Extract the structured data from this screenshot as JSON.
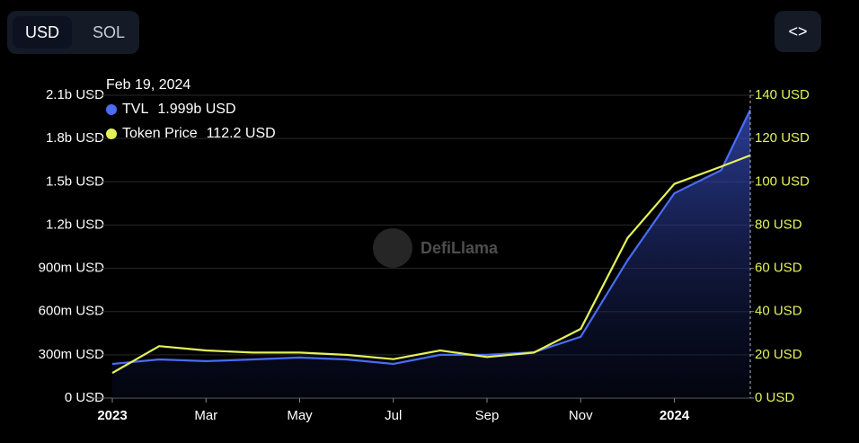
{
  "controls": {
    "options": [
      "USD",
      "SOL"
    ],
    "active": 0
  },
  "watermark": "DefiLlama",
  "chart_data": {
    "type": "line",
    "x": [
      "2023-01",
      "2023-02",
      "2023-03",
      "2023-04",
      "2023-05",
      "2023-06",
      "2023-07",
      "2023-08",
      "2023-09",
      "2023-10",
      "2023-11",
      "2023-12",
      "2024-01",
      "2024-02",
      "2024-02-19"
    ],
    "xlim": [
      "2023-01",
      "2024-02-19"
    ],
    "xticks": [
      {
        "value": "2023-01",
        "label": "2023"
      },
      {
        "value": "2023-03",
        "label": "Mar"
      },
      {
        "value": "2023-05",
        "label": "May"
      },
      {
        "value": "2023-07",
        "label": "Jul"
      },
      {
        "value": "2023-09",
        "label": "Sep"
      },
      {
        "value": "2023-11",
        "label": "Nov"
      },
      {
        "value": "2024-01",
        "label": "2024"
      }
    ],
    "series": [
      {
        "name": "TVL",
        "color": "#4a6cf7",
        "area": true,
        "values": [
          237000000,
          268000000,
          256000000,
          268000000,
          281000000,
          268000000,
          237000000,
          300000000,
          300000000,
          318000000,
          425000000,
          955000000,
          1420000000,
          1580000000,
          1999000000
        ]
      },
      {
        "name": "Token Price",
        "color": "#e4f25a",
        "axis": "y2",
        "values": [
          11.6,
          24,
          22,
          21,
          21,
          20,
          18,
          22,
          19,
          21,
          32,
          74,
          99,
          107,
          112.2
        ]
      }
    ],
    "ylim": [
      0,
      2100000000
    ],
    "yticks": [
      {
        "value": 0,
        "label": "0 USD"
      },
      {
        "value": 300000000,
        "label": "300m USD"
      },
      {
        "value": 600000000,
        "label": "600m USD"
      },
      {
        "value": 900000000,
        "label": "900m USD"
      },
      {
        "value": 1200000000,
        "label": "1.2b USD"
      },
      {
        "value": 1500000000,
        "label": "1.5b USD"
      },
      {
        "value": 1800000000,
        "label": "1.8b USD"
      },
      {
        "value": 2100000000,
        "label": "2.1b USD"
      }
    ],
    "y2lim": [
      0,
      140
    ],
    "y2ticks": [
      {
        "value": 0,
        "label": "0 USD"
      },
      {
        "value": 20,
        "label": "20 USD"
      },
      {
        "value": 40,
        "label": "40 USD"
      },
      {
        "value": 60,
        "label": "60 USD"
      },
      {
        "value": 80,
        "label": "80 USD"
      },
      {
        "value": 100,
        "label": "100 USD"
      },
      {
        "value": 120,
        "label": "120 USD"
      },
      {
        "value": 140,
        "label": "140 USD"
      }
    ],
    "grid": true,
    "tooltip": {
      "date": "Feb 19, 2024",
      "value_labels": [
        "1.999b USD",
        "112.2 USD"
      ]
    }
  }
}
